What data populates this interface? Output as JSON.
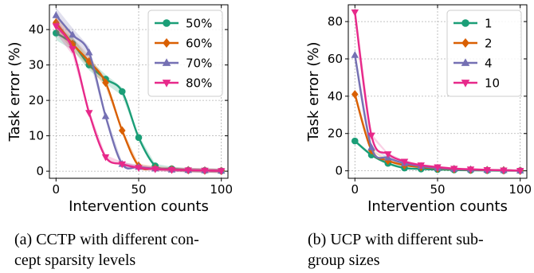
{
  "chart_data": [
    {
      "type": "line",
      "caption_label": "(a)",
      "caption_method": "CCTP",
      "caption_rest_1": "with different con-",
      "caption_rest_2": "cept sparsity levels",
      "xlabel": "Intervention counts",
      "ylabel": "Task error (%)",
      "xlim": [
        -4,
        104
      ],
      "ylim": [
        -2,
        47
      ],
      "xticks": [
        "0",
        "50",
        "100"
      ],
      "yticks": [
        "0",
        "10",
        "20",
        "30",
        "40"
      ],
      "xtick_values": [
        0,
        50,
        100
      ],
      "ytick_values": [
        0,
        10,
        20,
        30,
        40
      ],
      "grid": true,
      "legend_position": "top-right",
      "x": [
        0,
        10,
        20,
        30,
        40,
        50,
        60,
        70,
        80,
        90,
        100
      ],
      "series": [
        {
          "name": "50%",
          "color": "#1b9e77",
          "marker": "circle",
          "values": [
            39,
            36,
            30,
            26,
            22.5,
            9.5,
            1.5,
            0.7,
            0.3,
            0.2,
            0.1
          ]
        },
        {
          "name": "60%",
          "color": "#d95f02",
          "marker": "diamond",
          "values": [
            42,
            36,
            31,
            25,
            11.5,
            1.5,
            0.8,
            0.5,
            0.3,
            0.2,
            0.1
          ]
        },
        {
          "name": "70%",
          "color": "#7570b3",
          "marker": "triangle-up",
          "values": [
            44,
            38.5,
            33.5,
            15.5,
            2,
            1.2,
            0.7,
            0.4,
            0.3,
            0.2,
            0.1
          ]
        },
        {
          "name": "80%",
          "color": "#e7298a",
          "marker": "triangle-down",
          "values": [
            41,
            34.5,
            16.5,
            4,
            2,
            1,
            0.6,
            0.4,
            0.3,
            0.2,
            0.1
          ]
        }
      ]
    },
    {
      "type": "line",
      "caption_label": "(b)",
      "caption_method": "UCP",
      "caption_rest_1": "with different sub-",
      "caption_rest_2": "group sizes",
      "xlabel": "Intervention counts",
      "ylabel": "Task error (%)",
      "xlim": [
        -4,
        104
      ],
      "ylim": [
        -4,
        89
      ],
      "xticks": [
        "0",
        "50",
        "100"
      ],
      "yticks": [
        "0",
        "20",
        "40",
        "60",
        "80"
      ],
      "xtick_values": [
        0,
        50,
        100
      ],
      "ytick_values": [
        0,
        20,
        40,
        60,
        80
      ],
      "grid": true,
      "legend_position": "top-right",
      "x": [
        0,
        10,
        20,
        30,
        40,
        50,
        60,
        70,
        80,
        90,
        100
      ],
      "series": [
        {
          "name": "1",
          "color": "#1b9e77",
          "marker": "circle",
          "values": [
            16,
            8.5,
            4,
            1.5,
            1,
            0.7,
            0.5,
            0.3,
            0.2,
            0.1,
            0.1
          ]
        },
        {
          "name": "2",
          "color": "#d95f02",
          "marker": "diamond",
          "values": [
            41,
            11,
            5.5,
            3,
            2,
            1.3,
            0.9,
            0.6,
            0.4,
            0.3,
            0.1
          ]
        },
        {
          "name": "4",
          "color": "#7570b3",
          "marker": "triangle-up",
          "values": [
            62,
            12.5,
            7,
            4,
            2.5,
            1.5,
            1,
            0.7,
            0.4,
            0.3,
            0.1
          ]
        },
        {
          "name": "10",
          "color": "#e7298a",
          "marker": "triangle-down",
          "values": [
            85,
            19,
            9,
            5,
            3,
            2,
            1.2,
            0.8,
            0.5,
            0.3,
            0.1
          ]
        }
      ]
    }
  ]
}
